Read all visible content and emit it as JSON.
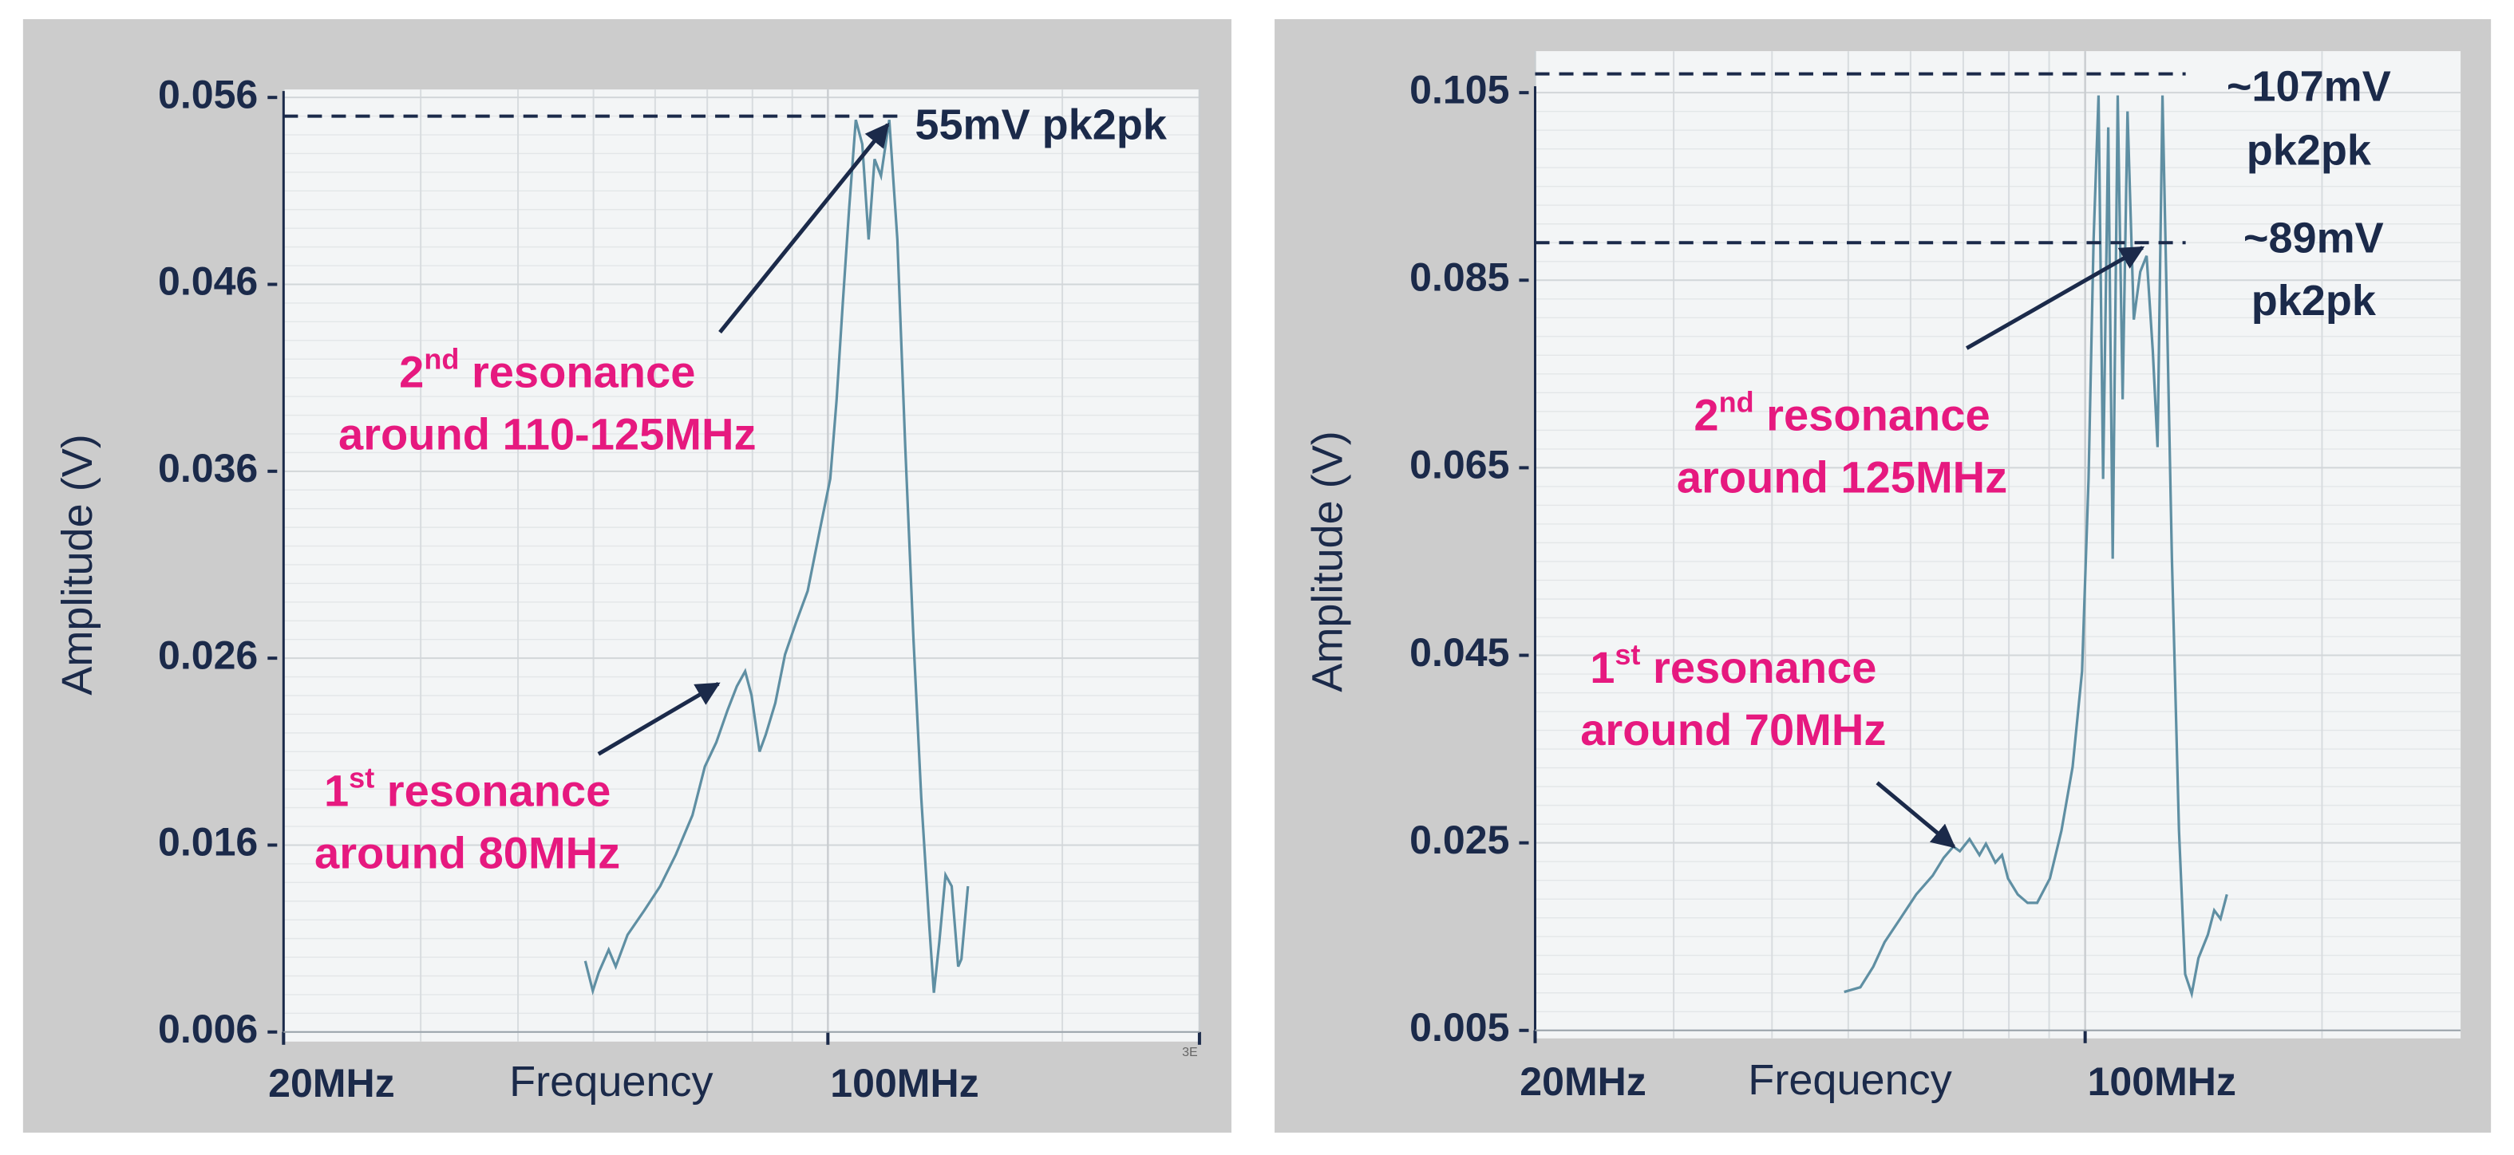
{
  "chart_data": [
    {
      "type": "line",
      "xlabel": "Frequency",
      "ylabel": "Amplitude (V)",
      "x_scale": "log",
      "xlim": [
        20,
        300
      ],
      "xticks": [
        {
          "value": 20,
          "label": "20MHz"
        },
        {
          "value": 100,
          "label": "100MHz"
        },
        {
          "value": 300,
          "label": "3E"
        }
      ],
      "xminorticks": [
        30,
        40,
        50,
        60,
        70,
        80,
        90,
        200
      ],
      "ylim": [
        0.006,
        0.056
      ],
      "yticks": [
        0.006,
        0.016,
        0.026,
        0.036,
        0.046,
        0.056
      ],
      "grid": true,
      "color": "#5f8fa3",
      "x": [
        48.8,
        49.9,
        50.8,
        52.3,
        53.4,
        55.3,
        58.1,
        60.9,
        63.8,
        67.0,
        69.5,
        71.9,
        74.3,
        76.4,
        78.3,
        79.8,
        81.7,
        83.2,
        85.6,
        88.1,
        91.0,
        94.2,
        97.8,
        100.7,
        102.6,
        104.5,
        106.5,
        108.6,
        110.7,
        112.8,
        114.8,
        117.0,
        119.9,
        122.8,
        125.7,
        128.8,
        131.8,
        135.0,
        136.8,
        139.0,
        141.6,
        144.2,
        147.0,
        148.4,
        151.3
      ],
      "values": [
        0.0098,
        0.0082,
        0.0092,
        0.0104,
        0.0095,
        0.0112,
        0.0125,
        0.0138,
        0.0155,
        0.0176,
        0.0202,
        0.0215,
        0.0232,
        0.0245,
        0.0253,
        0.024,
        0.021,
        0.0219,
        0.0236,
        0.0262,
        0.0279,
        0.0296,
        0.033,
        0.0356,
        0.0398,
        0.045,
        0.0501,
        0.0548,
        0.0535,
        0.0484,
        0.0527,
        0.0518,
        0.0548,
        0.0484,
        0.0373,
        0.027,
        0.0185,
        0.0116,
        0.0081,
        0.0108,
        0.0144,
        0.0138,
        0.0095,
        0.0099,
        0.0138
      ],
      "hlines": [
        {
          "value": 0.055,
          "label": [
            "55mV pk2pk"
          ]
        }
      ],
      "annotation_color": "#e6197f",
      "annotations": [
        {
          "num": "2",
          "sup": "nd",
          "text": " resonance",
          "line2": "around 110-125MHz"
        },
        {
          "num": "1",
          "sup": "st",
          "text": " resonance",
          "line2": "around 80MHz"
        }
      ]
    },
    {
      "type": "line",
      "xlabel": "Frequency",
      "ylabel": "Amplitude (V)",
      "x_scale": "log",
      "xlim": [
        20,
        300
      ],
      "xticks": [
        {
          "value": 20,
          "label": "20MHz"
        },
        {
          "value": 100,
          "label": "100MHz"
        }
      ],
      "xminorticks": [
        30,
        40,
        50,
        60,
        70,
        80,
        90,
        200
      ],
      "ylim": [
        0.005,
        0.105
      ],
      "yticks": [
        0.005,
        0.025,
        0.045,
        0.065,
        0.085,
        0.105
      ],
      "grid": true,
      "color": "#5f8fa3",
      "x": [
        49.4,
        51.8,
        53.8,
        55.6,
        58.2,
        61.0,
        64.0,
        66.1,
        68.0,
        69.3,
        71.3,
        73.4,
        74.8,
        76.9,
        78.4,
        79.8,
        82.1,
        84.5,
        86.9,
        90.2,
        93.3,
        96.4,
        99.1,
        101.0,
        102.5,
        104.0,
        105.4,
        107.0,
        108.4,
        110.0,
        111.6,
        113.2,
        115.3,
        117.5,
        119.7,
        121.9,
        123.6,
        125.4,
        127.1,
        128.9,
        131.6,
        134.0,
        136.6,
        139.3,
        143.2,
        145.9,
        148.6,
        151.4
      ],
      "values": [
        0.0091,
        0.0096,
        0.0118,
        0.0144,
        0.0169,
        0.0195,
        0.0215,
        0.0234,
        0.0246,
        0.0241,
        0.0254,
        0.0237,
        0.0249,
        0.0229,
        0.0237,
        0.0212,
        0.0195,
        0.0186,
        0.0186,
        0.0212,
        0.0263,
        0.0331,
        0.0433,
        0.0638,
        0.0893,
        0.1047,
        0.0638,
        0.1013,
        0.0553,
        0.1047,
        0.0723,
        0.103,
        0.0808,
        0.0859,
        0.0876,
        0.0774,
        0.0672,
        0.1047,
        0.0808,
        0.0553,
        0.0263,
        0.011,
        0.0089,
        0.0127,
        0.0152,
        0.0178,
        0.0169,
        0.0195
      ],
      "hlines": [
        {
          "value": 0.107,
          "label": [
            "~107mV",
            "pk2pk"
          ]
        },
        {
          "value": 0.089,
          "label": [
            "~89mV",
            "pk2pk"
          ]
        }
      ],
      "annotation_color": "#e6197f",
      "annotations": [
        {
          "num": "2",
          "sup": "nd",
          "text": " resonance",
          "line2": "around 125MHz"
        },
        {
          "num": "1",
          "sup": "st",
          "text": " resonance",
          "line2": "around 70MHz"
        }
      ]
    }
  ]
}
